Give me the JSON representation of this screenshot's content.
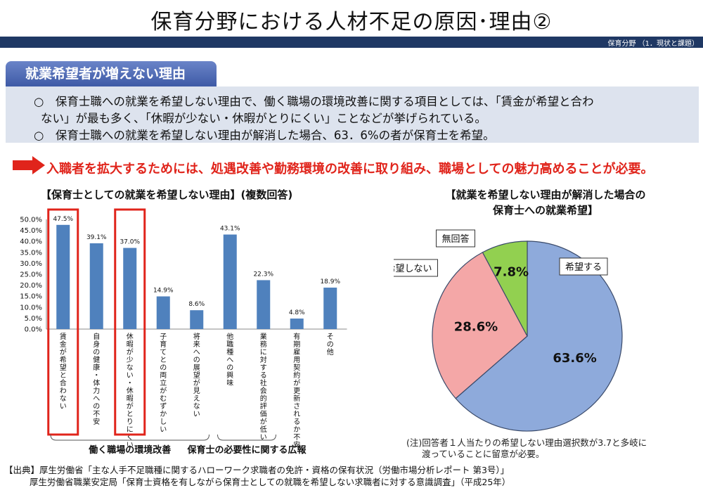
{
  "slide": {
    "title": "保育分野における人材不足の原因･理由②",
    "header_tag": "保育分野 （1．現状と課題）",
    "section_label": "就業希望者が増えない理由",
    "summary_lines": [
      "○　保育士職への就業を希望しない理由で、働く職場の環境改善に関する項目としては、「賃金が希望と合わ",
      "ない」が最も多く、「休暇が少ない・休暇がとりにくい」ことなどが挙げられている。",
      "○　保育士職への就業を希望しない理由が解消した場合、63．6%の者が保育士を希望。"
    ],
    "conclusion": "入職者を拡大するためには、処遇改善や勤務環境の改善に取り組み、職場としての魅力高めることが必要。",
    "note": [
      "(注)回答者１人当たりの希望しない理由選択数が3.7と多岐に",
      "渡っていることに留意が必要。"
    ],
    "sources": [
      "【出典】厚生労働省「主な人手不足職種に関するハローワーク求職者の免許・資格の保有状況（労働市場分析レポート 第3号）」",
      "厚生労働省職業安定局「保育士資格を有しながら保育士としての就職を希望しない求職者に対する意識調査」（平成25年）"
    ],
    "colors": {
      "bar": "#4f81bd",
      "highlight": "#e0241b",
      "header": "#1f3864",
      "pie_hope": "#8eaadb",
      "pie_no": "#f4a7a7",
      "pie_none": "#92d050"
    }
  },
  "chart_data": [
    {
      "type": "bar",
      "title": "【保育士としての就業を希望しない理由】(複数回答)",
      "categories": [
        "賃金が希望と合わない",
        "自身の健康・体力への不安",
        "休暇が少ない・休暇がとりにくい",
        "子育てとの両立がむずかしい",
        "将来への展望が見えない",
        "他職種への興味",
        "業務に対する社会的評価が低い",
        "有期雇用契約が更新されるか不安",
        "その他"
      ],
      "values": [
        47.5,
        39.1,
        37.0,
        14.9,
        8.6,
        43.1,
        22.3,
        4.8,
        18.9
      ],
      "value_labels": [
        "47.5%",
        "39.1%",
        "37.0%",
        "14.9%",
        "8.6%",
        "43.1%",
        "22.3%",
        "4.8%",
        "18.9%"
      ],
      "y_ticks": [
        "50.0%",
        "45.0%",
        "40.0%",
        "35.0%",
        "30.0%",
        "25.0%",
        "20.0%",
        "15.0%",
        "10.0%",
        "5.0%",
        "0.0%"
      ],
      "ylim": [
        0,
        50
      ],
      "highlighted": [
        0,
        2
      ],
      "groups": [
        {
          "label": "働く職場の環境改善",
          "from": 0,
          "to": 4
        },
        {
          "label": "保育士の必要性に関する広報",
          "from": 5,
          "to": 6
        }
      ]
    },
    {
      "type": "pie",
      "title": [
        "【就業を希望しない理由が解消した場合の",
        "保育士への就業希望】"
      ],
      "slices": [
        {
          "label": "希望する",
          "value": 63.6,
          "value_label": "63.6%",
          "color": "#8eaadb"
        },
        {
          "label": "希望しない",
          "value": 28.6,
          "value_label": "28.6%",
          "color": "#f4a7a7"
        },
        {
          "label": "無回答",
          "value": 7.8,
          "value_label": "7.8%",
          "color": "#92d050"
        }
      ]
    }
  ]
}
